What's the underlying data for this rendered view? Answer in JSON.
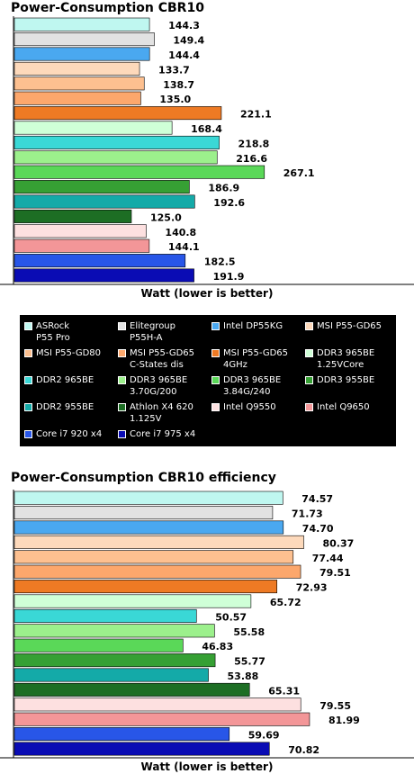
{
  "colors": [
    "#bff7f0",
    "#e2e2e2",
    "#4aa8f0",
    "#fdd9bb",
    "#fdc090",
    "#fca76c",
    "#ee7a24",
    "#cfffd7",
    "#3ad8d6",
    "#9cf08c",
    "#5ad858",
    "#36a034",
    "#14aaa8",
    "#1d6e24",
    "#fde0e0",
    "#f39698",
    "#2856e8",
    "#0a0cb4"
  ],
  "chart_data": [
    {
      "type": "bar",
      "orientation": "horizontal",
      "title": "Power-Consumption CBR10",
      "xlabel": "Watt (lower is better)",
      "xlim": [
        0,
        300
      ],
      "categories": [
        "ASRock P55 Pro",
        "Elitegroup P55H-A",
        "Intel DP55KG",
        "MSI P55-GD65",
        "MSI P55-GD80",
        "MSI P55-GD65 C-States dis",
        "MSI P55-GD65 4GHz",
        "DDR3 965BE 1.25VCore",
        "DDR2 965BE",
        "DDR3 965BE 3.70G/200",
        "DDR3 965BE 3.84G/240",
        "DDR3 955BE",
        "DDR2 955BE",
        "Athlon X4 620 1.125V",
        "Intel Q9550",
        "Intel Q9650",
        "Core i7 920 x4",
        "Core i7 975 x4"
      ],
      "values": [
        144.3,
        149.4,
        144.4,
        133.7,
        138.7,
        135.0,
        221.1,
        168.4,
        218.8,
        216.6,
        267.1,
        186.9,
        192.6,
        125.0,
        140.8,
        144.1,
        182.5,
        191.9
      ],
      "labels": [
        "144.3",
        "149.4",
        "144.4",
        "133.7",
        "138.7",
        "135.0",
        "221.1",
        "168.4",
        "218.8",
        "216.6",
        "267.1",
        "186.9",
        "192.6",
        "125.0",
        "140.8",
        "144.1",
        "182.5",
        "191.9"
      ]
    },
    {
      "type": "bar",
      "orientation": "horizontal",
      "title": "Power-Consumption CBR10 efficiency",
      "xlabel": "Watt (lower is better)",
      "xlim": [
        0,
        100
      ],
      "categories": [
        "ASRock P55 Pro",
        "Elitegroup P55H-A",
        "Intel DP55KG",
        "MSI P55-GD65",
        "MSI P55-GD80",
        "MSI P55-GD65 C-States dis",
        "MSI P55-GD65 4GHz",
        "DDR3 965BE 1.25VCore",
        "DDR2 965BE",
        "DDR3 965BE 3.70G/200",
        "DDR3 965BE 3.84G/240",
        "DDR3 955BE",
        "DDR2 955BE",
        "Athlon X4 620 1.125V",
        "Intel Q9550",
        "Intel Q9650",
        "Core i7 920 x4",
        "Core i7 975 x4"
      ],
      "values": [
        74.57,
        71.73,
        74.7,
        80.37,
        77.44,
        79.51,
        72.93,
        65.72,
        50.57,
        55.58,
        46.83,
        55.77,
        53.88,
        65.31,
        79.55,
        81.99,
        59.69,
        70.82
      ],
      "labels": [
        "74.57",
        "71.73",
        "74.70",
        "80.37",
        "77.44",
        "79.51",
        "72.93",
        "65.72",
        "50.57",
        "55.58",
        "46.83",
        "55.77",
        "53.88",
        "65.31",
        "79.55",
        "81.99",
        "59.69",
        "70.82"
      ]
    }
  ],
  "legend": {
    "placement": "between charts",
    "items": [
      "ASRock\nP55 Pro",
      "Elitegroup\nP55H-A",
      "Intel DP55KG",
      "MSI P55-GD65",
      "MSI P55-GD80",
      "MSI P55-GD65\nC-States dis",
      "MSI P55-GD65\n4GHz",
      "DDR3 965BE\n1.25VCore",
      "DDR2 965BE",
      "DDR3 965BE\n3.70G/200",
      "DDR3 965BE\n3.84G/240",
      "DDR3 955BE",
      "DDR2 955BE",
      "Athlon X4 620\n1.125V",
      "Intel Q9550",
      "Intel Q9650",
      "Core i7 920 x4",
      "Core i7 975 x4"
    ]
  }
}
